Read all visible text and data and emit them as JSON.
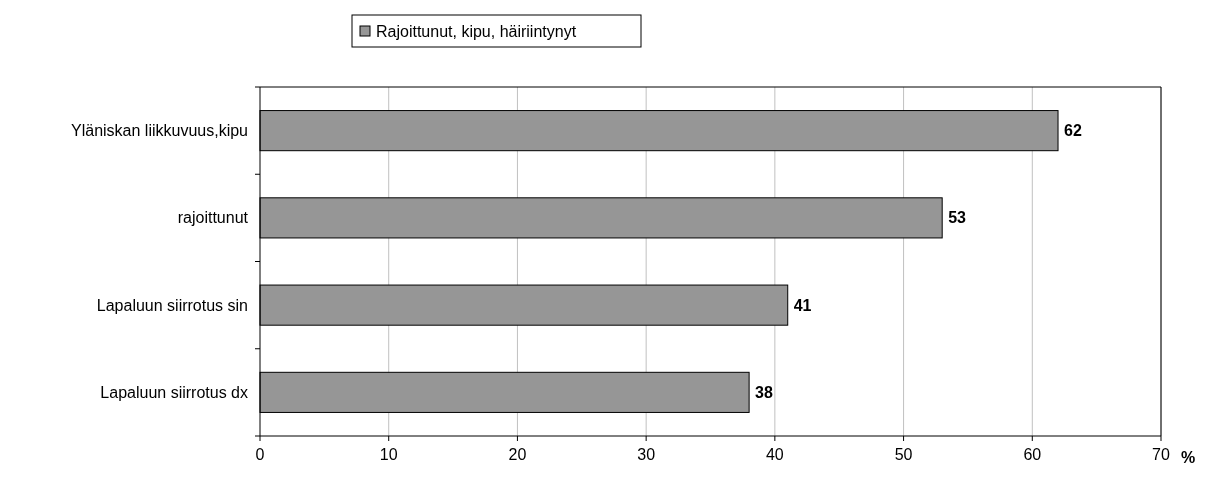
{
  "chart_data": {
    "type": "bar",
    "orientation": "horizontal",
    "categories": [
      "Yläniskan liikkuvuus,kipu",
      "rajoittunut",
      "Lapaluun siirrotus sin",
      "Lapaluun siirrotus dx"
    ],
    "series": [
      {
        "name": "Rajoittunut, kipu, häiriintynyt",
        "color": "#969696",
        "values": [
          62,
          53,
          41,
          38
        ]
      }
    ],
    "xlim": [
      0,
      70
    ],
    "xticks": [
      0,
      10,
      20,
      30,
      40,
      50,
      60,
      70
    ],
    "xlabel": "%",
    "grid": "x",
    "legend": "top",
    "data_labels": true
  }
}
